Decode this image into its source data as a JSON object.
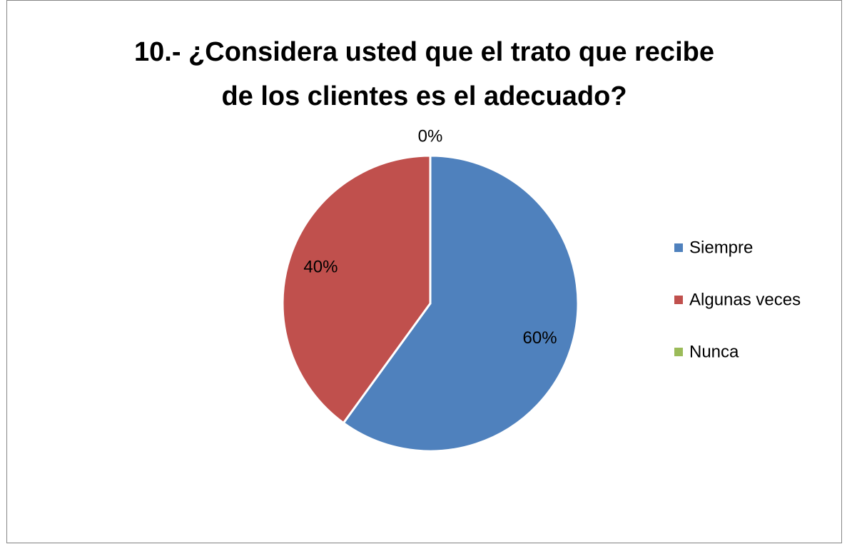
{
  "chart_data": {
    "type": "pie",
    "title": "10.- ¿Considera usted que el trato que recibe\nde los clientes es el adecuado?",
    "categories": [
      "Siempre",
      "Algunas veces",
      "Nunca"
    ],
    "values": [
      60,
      40,
      0
    ],
    "value_labels": [
      "60%",
      "40%",
      "0%"
    ],
    "colors": [
      "#4f81bd",
      "#c0504d",
      "#9bbb59"
    ],
    "legend": "right"
  }
}
